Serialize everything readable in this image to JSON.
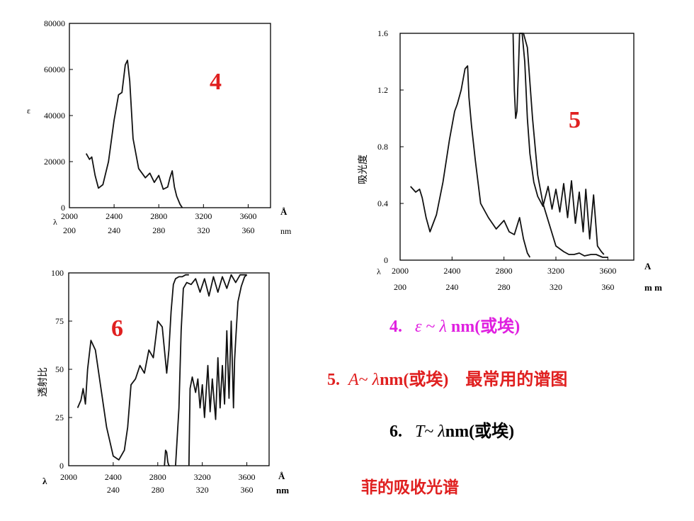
{
  "chart_data": [
    {
      "type": "line",
      "panel_number": "4",
      "ylabel": "ε",
      "xlabel_symbol": "λ",
      "y_ticks": [
        "80000",
        "60000",
        "40000",
        "20000",
        "0"
      ],
      "x_ticks_angstrom": [
        "2000",
        "2400",
        "2800",
        "3200",
        "3600"
      ],
      "x_unit_angstrom": "Å",
      "x_ticks_nm": [
        "200",
        "240",
        "280",
        "320",
        "360"
      ],
      "x_unit_nm": "nm",
      "xlim_angstrom": [
        2000,
        3800
      ],
      "ylim": [
        0,
        80000
      ],
      "series": [
        {
          "x": [
            2150,
            2180,
            2200,
            2230,
            2260,
            2300,
            2350,
            2400,
            2440,
            2470,
            2500,
            2520,
            2540,
            2570,
            2620,
            2680,
            2720,
            2760,
            2800,
            2840,
            2880,
            2900,
            2920,
            2940,
            2960,
            2990,
            3010
          ],
          "values": [
            23500,
            21000,
            22000,
            14000,
            8500,
            10000,
            20000,
            38000,
            49000,
            50000,
            62000,
            64000,
            55000,
            30000,
            17000,
            13000,
            15000,
            11000,
            14000,
            8000,
            9000,
            13000,
            16000,
            9000,
            5000,
            1500,
            0
          ]
        }
      ]
    },
    {
      "type": "line",
      "panel_number": "5",
      "ylabel": "吸光度",
      "xlabel_symbol": "λ",
      "y_ticks": [
        "1.6",
        "1.2",
        "0.8",
        "0.4",
        "0"
      ],
      "x_ticks_angstrom": [
        "2000",
        "2400",
        "2800",
        "3200",
        "3600"
      ],
      "x_unit_angstrom": "A",
      "x_ticks_nm": [
        "200",
        "240",
        "280",
        "320",
        "360"
      ],
      "x_unit_nm": "m m",
      "xlim_angstrom": [
        2000,
        3800
      ],
      "ylim": [
        0,
        1.6
      ],
      "series": [
        {
          "x": [
            2080,
            2120,
            2150,
            2170,
            2200,
            2230,
            2280,
            2330,
            2380,
            2420,
            2440,
            2470,
            2500,
            2520,
            2530,
            2550,
            2580,
            2620,
            2680,
            2740,
            2800,
            2840,
            2880,
            2920,
            2950,
            2980,
            3000
          ],
          "values": [
            0.52,
            0.48,
            0.5,
            0.44,
            0.3,
            0.2,
            0.32,
            0.55,
            0.85,
            1.05,
            1.1,
            1.2,
            1.35,
            1.37,
            1.15,
            0.95,
            0.7,
            0.4,
            0.3,
            0.22,
            0.28,
            0.2,
            0.18,
            0.3,
            0.15,
            0.05,
            0.02
          ]
        },
        {
          "x": [
            2870,
            2880,
            2890,
            2900,
            2910,
            2920,
            2930,
            2950,
            2980,
            3020,
            3060,
            3100,
            3140,
            3200,
            3260,
            3300,
            3340,
            3380,
            3420,
            3470,
            3510,
            3560,
            3600
          ],
          "values": [
            1.6,
            1.2,
            1.0,
            1.05,
            1.3,
            1.6,
            1.6,
            1.6,
            1.5,
            1.0,
            0.6,
            0.4,
            0.28,
            0.1,
            0.06,
            0.04,
            0.04,
            0.05,
            0.03,
            0.04,
            0.04,
            0.02,
            0.02
          ]
        },
        {
          "x": [
            2920,
            2940,
            2960,
            2980,
            3000,
            3030,
            3060,
            3100,
            3140,
            3170,
            3200,
            3230,
            3260,
            3290,
            3320,
            3350,
            3380,
            3410,
            3430,
            3460,
            3490,
            3520,
            3550,
            3570
          ],
          "values": [
            1.6,
            1.6,
            1.4,
            1.0,
            0.75,
            0.55,
            0.45,
            0.38,
            0.52,
            0.36,
            0.5,
            0.34,
            0.54,
            0.3,
            0.56,
            0.26,
            0.48,
            0.2,
            0.5,
            0.15,
            0.46,
            0.1,
            0.06,
            0.04
          ]
        }
      ]
    },
    {
      "type": "line",
      "panel_number": "6",
      "ylabel": "透射比",
      "xlabel_symbol": "λ",
      "y_ticks": [
        "100",
        "75",
        "50",
        "25",
        "0"
      ],
      "x_ticks_angstrom": [
        "2000",
        "2400",
        "2800",
        "3200",
        "3600"
      ],
      "x_unit_angstrom": "Å",
      "x_ticks_nm": [
        "240",
        "280",
        "320",
        "360"
      ],
      "x_unit_nm": "nm",
      "xlim_angstrom": [
        2000,
        3800
      ],
      "ylim": [
        0,
        100
      ],
      "series": [
        {
          "x": [
            2080,
            2110,
            2130,
            2150,
            2170,
            2200,
            2240,
            2290,
            2340,
            2400,
            2450,
            2500,
            2530,
            2560,
            2600,
            2640,
            2680,
            2720,
            2760,
            2800,
            2840,
            2880,
            2900,
            2920,
            2940,
            2960,
            2990,
            3020,
            3050,
            3080
          ],
          "values": [
            30,
            34,
            40,
            32,
            50,
            65,
            60,
            40,
            20,
            5,
            3,
            8,
            20,
            42,
            45,
            52,
            48,
            60,
            56,
            75,
            72,
            48,
            60,
            80,
            94,
            97,
            98,
            98,
            99,
            99
          ]
        },
        {
          "x": [
            2860,
            2870,
            2880,
            2890,
            2900,
            2910
          ],
          "values": [
            0,
            8,
            7,
            2,
            0,
            0
          ]
        },
        {
          "x": [
            2960,
            2990,
            3010,
            3030,
            3060,
            3100,
            3140,
            3180,
            3220,
            3260,
            3300,
            3340,
            3380,
            3420,
            3460,
            3500,
            3540,
            3570,
            3600
          ],
          "values": [
            0,
            30,
            70,
            92,
            95,
            94,
            97,
            90,
            97,
            88,
            98,
            90,
            98,
            92,
            99,
            95,
            99,
            99,
            99
          ]
        },
        {
          "x": [
            3080,
            3090,
            3110,
            3140,
            3160,
            3180,
            3200,
            3220,
            3250,
            3270,
            3290,
            3320,
            3340,
            3360,
            3380,
            3400,
            3420,
            3440,
            3460,
            3480,
            3490,
            3500,
            3520,
            3550,
            3580,
            3600
          ],
          "values": [
            0,
            40,
            46,
            38,
            45,
            30,
            42,
            25,
            52,
            28,
            45,
            24,
            56,
            30,
            52,
            32,
            70,
            35,
            75,
            30,
            55,
            65,
            85,
            93,
            98,
            99
          ]
        }
      ]
    }
  ],
  "captions": {
    "c4_prefix": "4.",
    "c4_symbol": "ε",
    "c4_tilde": "~",
    "c4_lambda": "λ",
    "c4_text": "nm(或埃)",
    "c5_prefix": "5.",
    "c5_symbol": "A",
    "c5_tilde": "~",
    "c5_lambda": "λ",
    "c5_text": "nm(或埃)",
    "c5_note": "最常用的谱图",
    "c6_prefix": "6.",
    "c6_symbol": "T",
    "c6_tilde": "~",
    "c6_lambda": "λ",
    "c6_text": "nm(或埃)",
    "footer": "菲的吸收光谱"
  },
  "colors": {
    "panel_number": "#e02020",
    "caption4": "#e020e0",
    "caption5": "#e02020",
    "caption6": "#000000",
    "footer": "#e02020"
  }
}
